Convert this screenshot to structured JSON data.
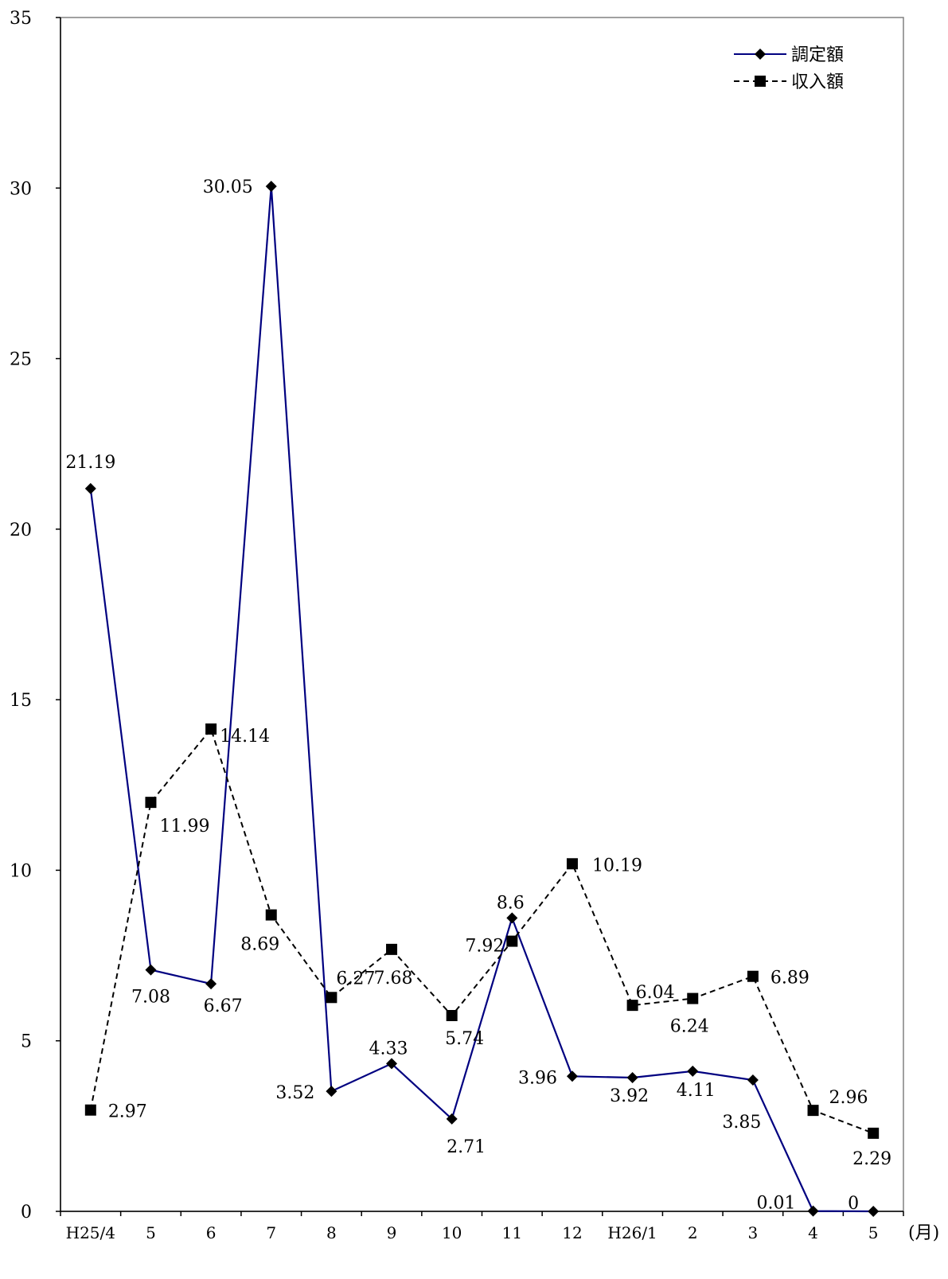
{
  "chart_data": {
    "type": "line",
    "categories": [
      "H25/4",
      "5",
      "6",
      "7",
      "8",
      "9",
      "10",
      "11",
      "12",
      "H26/1",
      "2",
      "3",
      "4",
      "5"
    ],
    "x_unit_label": "(月)",
    "ylim": [
      0,
      35
    ],
    "y_ticks": [
      "0",
      "5",
      "10",
      "15",
      "20",
      "25",
      "30",
      "35"
    ],
    "grid": false,
    "legend_position": "top-right",
    "series": [
      {
        "name": "調定額",
        "color": "#000080",
        "line_style": "solid",
        "marker": "diamond",
        "values": [
          21.19,
          7.08,
          6.67,
          30.05,
          3.52,
          4.33,
          2.71,
          8.6,
          3.96,
          3.92,
          4.11,
          3.85,
          0.01,
          0
        ],
        "labels": [
          "21.19",
          "7.08",
          "6.67",
          "30.05",
          "3.52",
          "4.33",
          "2.71",
          "8.6",
          "3.96",
          "3.92",
          "4.11",
          "3.85",
          "0.01",
          "0"
        ]
      },
      {
        "name": "収入額",
        "color": "#000000",
        "line_style": "dashed",
        "marker": "square",
        "values": [
          2.97,
          11.99,
          14.14,
          8.69,
          6.27,
          7.68,
          5.74,
          7.92,
          10.19,
          6.04,
          6.24,
          6.89,
          2.96,
          2.29
        ],
        "labels": [
          "2.97",
          "11.99",
          "14.14",
          "8.69",
          "6.27",
          "7.68",
          "5.74",
          "7.92",
          "10.19",
          "6.04",
          "6.24",
          "6.89",
          "2.96",
          "2.29"
        ]
      }
    ]
  }
}
